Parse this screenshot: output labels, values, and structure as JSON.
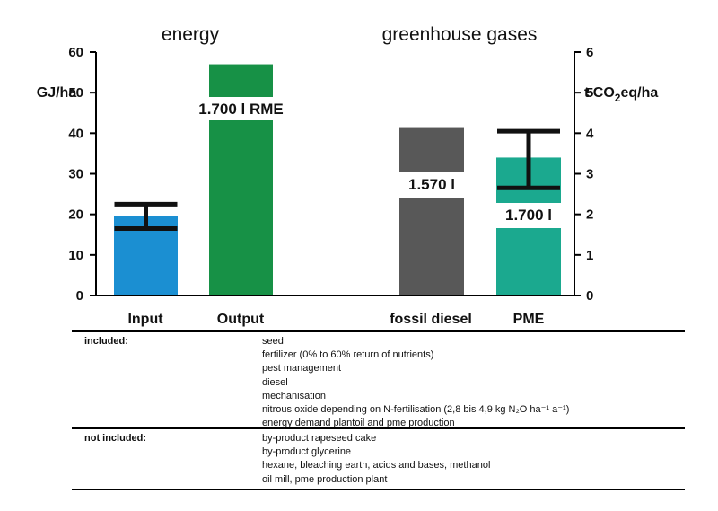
{
  "chart_data": [
    {
      "type": "bar",
      "title": "energy",
      "ylabel": "GJ/ha",
      "ylim": [
        0,
        60
      ],
      "yticks": [
        0,
        10,
        20,
        30,
        40,
        50,
        60
      ],
      "categories": [
        "Input",
        "Output"
      ],
      "values": [
        19.5,
        57
      ],
      "colors": [
        "#1b8fd2",
        "#179146"
      ],
      "error_bars": [
        {
          "category": "Input",
          "low": 16.5,
          "high": 22.5
        }
      ],
      "bar_labels": [
        {
          "category": "Output",
          "text": "1.700 l RME"
        }
      ]
    },
    {
      "type": "bar",
      "title": "greenhouse gases",
      "ylabel_parts": [
        "t CO",
        "2",
        "eq/ha"
      ],
      "ylim": [
        0,
        6
      ],
      "yticks": [
        0,
        1,
        2,
        3,
        4,
        5,
        6
      ],
      "categories": [
        "fossil diesel",
        "PME"
      ],
      "values": [
        4.15,
        3.4
      ],
      "colors": [
        "#585858",
        "#1ba98f"
      ],
      "error_bars": [
        {
          "category": "PME",
          "low": 2.65,
          "high": 4.05
        }
      ],
      "bar_labels": [
        {
          "category": "fossil diesel",
          "text": "1.570 l"
        },
        {
          "category": "PME",
          "text": "1.700 l"
        }
      ]
    }
  ],
  "table": {
    "included_label": "included:",
    "included": [
      "seed",
      "fertilizer (0% to 60% return of nutrients)",
      "pest management",
      "diesel",
      "mechanisation",
      "nitrous oxide depending on N-fertilisation (2,8 bis 4,9 kg N₂O ha⁻¹ a⁻¹)",
      "energy demand plantoil and pme production"
    ],
    "not_included_label": "not included:",
    "not_included": [
      "by-product rapeseed cake",
      "by-product glycerine",
      "hexane, bleaching earth, acids and bases, methanol",
      "oil mill, pme production plant"
    ]
  }
}
